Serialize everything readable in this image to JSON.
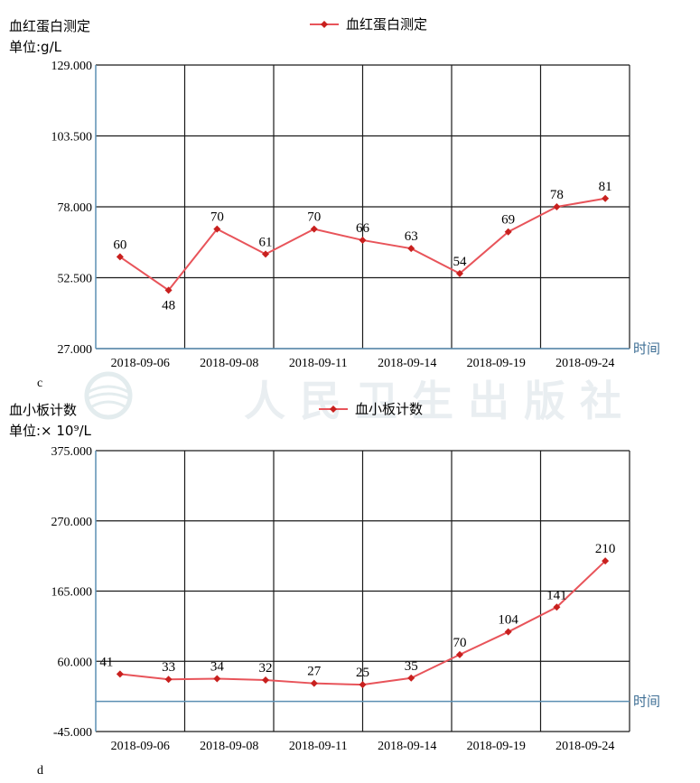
{
  "watermark": {
    "text": "人民卫生出版社",
    "color": "#e9eef1"
  },
  "colors": {
    "series": "#e8545a",
    "marker": "#c8201e",
    "baseline": "#5b8fb3",
    "grid": "#1a1a1a",
    "time_label": "#3f6f95"
  },
  "chart_data": [
    {
      "type": "line",
      "panel_label": "c",
      "title": "血红蛋白测定",
      "unit": "单位:g/L",
      "legend": "血红蛋白测定",
      "legend_position": "top-center",
      "xlabel": "时间",
      "x_tick_labels": [
        "2018-09-06",
        "2018-09-08",
        "2018-09-11",
        "2018-09-14",
        "2018-09-19",
        "2018-09-24"
      ],
      "y_tick_labels": [
        "129.000",
        "103.500",
        "78.000",
        "52.500",
        "27.000"
      ],
      "ylim": [
        27,
        129
      ],
      "grid": true,
      "series": [
        {
          "name": "血红蛋白测定",
          "values": [
            60,
            48,
            70,
            61,
            70,
            66,
            63,
            54,
            69,
            78,
            81
          ]
        }
      ]
    },
    {
      "type": "line",
      "panel_label": "d",
      "title": "血小板计数",
      "unit": "单位:× 10⁹/L",
      "legend": "血小板计数",
      "legend_position": "top-center",
      "xlabel": "时间",
      "x_tick_labels": [
        "2018-09-06",
        "2018-09-08",
        "2018-09-11",
        "2018-09-14",
        "2018-09-19",
        "2018-09-24"
      ],
      "y_tick_labels": [
        "375.000",
        "270.000",
        "165.000",
        "60.000",
        "-45.000"
      ],
      "ylim": [
        -45,
        375
      ],
      "baseline": 0,
      "grid": true,
      "series": [
        {
          "name": "血小板计数",
          "values": [
            41,
            33,
            34,
            32,
            27,
            25,
            35,
            70,
            104,
            141,
            210
          ]
        }
      ]
    }
  ]
}
